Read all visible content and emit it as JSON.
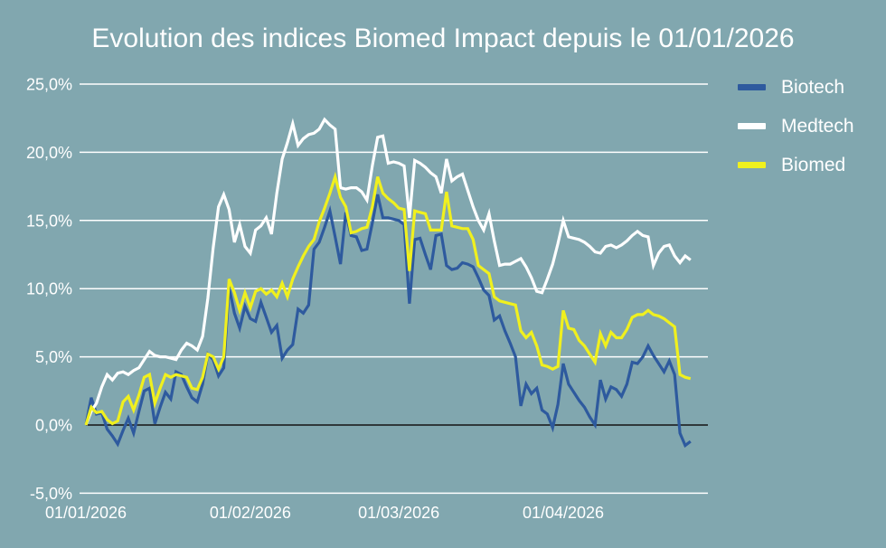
{
  "title": "Evolution des indices Biomed Impact depuis le 01/01/2026",
  "colors": {
    "background": "#81A7AF",
    "text": "#FFFFFF",
    "gridline": "#FFFFFF",
    "zero_line": "#141414"
  },
  "legend": {
    "position": "right",
    "items": [
      {
        "label": "Biotech"
      },
      {
        "label": "Medtech"
      },
      {
        "label": "Biomed"
      }
    ]
  },
  "chart_data": {
    "type": "line",
    "title": "Evolution des indices Biomed Impact depuis le 01/01/2026",
    "x_unit": "day",
    "x_start_date": "01/01/2026",
    "x_axis_end_day": 117,
    "grid": "horizontal",
    "ylim": [
      -5,
      25
    ],
    "y_tick_format": "percent-fr",
    "y_ticks": [
      {
        "value": 25,
        "label": "25,0%"
      },
      {
        "value": 20,
        "label": "20,0%"
      },
      {
        "value": 15,
        "label": "15,0%"
      },
      {
        "value": 10,
        "label": "10,0%"
      },
      {
        "value": 5,
        "label": "5,0%"
      },
      {
        "value": 0,
        "label": "0,0%"
      },
      {
        "value": -5,
        "label": "-5,0%"
      }
    ],
    "x_ticks": [
      {
        "day": 0,
        "label": "01/01/2026"
      },
      {
        "day": 31,
        "label": "01/02/2026"
      },
      {
        "day": 59,
        "label": "01/03/2026"
      },
      {
        "day": 90,
        "label": "01/04/2026"
      }
    ],
    "series": [
      {
        "name": "Biotech",
        "color": "#2E5A9E",
        "values": [
          0.0,
          2.0,
          0.8,
          0.9,
          -0.3,
          -0.8,
          -1.4,
          -0.4,
          0.5,
          -0.6,
          1.0,
          2.5,
          2.7,
          0.1,
          1.3,
          2.4,
          1.9,
          3.9,
          3.7,
          2.8,
          2.0,
          1.7,
          3.0,
          5.2,
          4.8,
          3.6,
          4.2,
          10.1,
          8.2,
          7.1,
          8.7,
          7.8,
          7.6,
          9.0,
          7.9,
          6.8,
          7.3,
          4.9,
          5.5,
          5.9,
          8.5,
          8.2,
          8.8,
          12.9,
          13.4,
          14.5,
          15.7,
          13.8,
          11.8,
          15.6,
          13.9,
          13.8,
          12.8,
          12.9,
          14.8,
          16.9,
          15.2,
          15.2,
          15.1,
          15.0,
          14.7,
          8.9,
          13.6,
          13.7,
          12.5,
          11.4,
          13.9,
          14.0,
          11.7,
          11.4,
          11.5,
          11.9,
          11.8,
          11.6,
          10.8,
          9.9,
          9.5,
          7.7,
          8.0,
          6.9,
          6.0,
          5.0,
          1.4,
          3.0,
          2.3,
          2.7,
          1.1,
          0.8,
          -0.2,
          1.5,
          4.5,
          3.0,
          2.4,
          1.8,
          1.3,
          0.6,
          0.0,
          3.3,
          1.9,
          2.8,
          2.6,
          2.1,
          3.0,
          4.6,
          4.5,
          5.0,
          5.8,
          5.1,
          4.5,
          3.9,
          4.7,
          3.7,
          -0.6,
          -1.5,
          -1.2
        ]
      },
      {
        "name": "Medtech",
        "color": "#FFFFFF",
        "values": [
          0.0,
          1.0,
          1.6,
          2.8,
          3.7,
          3.3,
          3.8,
          3.9,
          3.7,
          4.0,
          4.2,
          4.8,
          5.4,
          5.1,
          5.0,
          5.0,
          4.9,
          4.8,
          5.5,
          6.0,
          5.8,
          5.5,
          6.5,
          9.3,
          13.0,
          16.0,
          16.9,
          15.8,
          13.4,
          14.7,
          13.1,
          12.6,
          14.3,
          14.6,
          15.2,
          14.0,
          17.0,
          19.5,
          20.7,
          22.1,
          20.5,
          21.0,
          21.3,
          21.4,
          21.7,
          22.4,
          22.0,
          21.7,
          17.4,
          17.3,
          17.4,
          17.4,
          17.1,
          16.5,
          19.0,
          21.1,
          21.2,
          19.2,
          19.3,
          19.2,
          19.0,
          15.2,
          19.4,
          19.2,
          18.9,
          18.5,
          18.2,
          17.0,
          19.5,
          17.9,
          18.2,
          18.4,
          17.2,
          16.0,
          15.0,
          14.3,
          15.5,
          13.5,
          11.7,
          11.8,
          11.8,
          12.0,
          12.2,
          11.6,
          10.8,
          9.8,
          9.7,
          10.7,
          11.8,
          13.3,
          15.0,
          13.8,
          13.7,
          13.6,
          13.4,
          13.1,
          12.7,
          12.6,
          13.1,
          13.2,
          13.0,
          13.2,
          13.5,
          13.9,
          14.2,
          13.9,
          13.8,
          11.7,
          12.6,
          13.1,
          13.2,
          12.4,
          11.9,
          12.4,
          12.1
        ]
      },
      {
        "name": "Biomed",
        "color": "#F0F01E",
        "values": [
          0.0,
          1.3,
          0.9,
          1.0,
          0.4,
          0.1,
          0.3,
          1.7,
          2.1,
          1.1,
          2.2,
          3.5,
          3.7,
          1.6,
          2.7,
          3.7,
          3.5,
          3.7,
          3.6,
          3.5,
          2.7,
          2.6,
          3.5,
          5.2,
          5.0,
          4.1,
          5.0,
          10.7,
          9.7,
          8.4,
          9.7,
          8.6,
          9.8,
          10.0,
          9.6,
          9.9,
          9.4,
          10.4,
          9.4,
          10.7,
          11.6,
          12.4,
          13.1,
          13.6,
          14.9,
          15.9,
          17.0,
          18.2,
          16.7,
          16.0,
          14.1,
          14.2,
          14.4,
          14.5,
          16.0,
          18.2,
          17.0,
          16.6,
          16.3,
          15.9,
          15.8,
          11.3,
          15.7,
          15.6,
          15.5,
          14.3,
          14.3,
          14.3,
          17.1,
          14.6,
          14.5,
          14.4,
          14.4,
          13.6,
          11.7,
          11.4,
          11.1,
          9.4,
          9.1,
          9.0,
          8.9,
          8.8,
          6.9,
          6.4,
          6.8,
          5.8,
          4.4,
          4.3,
          4.1,
          4.3,
          8.4,
          7.1,
          7.0,
          6.2,
          5.8,
          5.2,
          4.6,
          6.7,
          5.8,
          6.8,
          6.4,
          6.4,
          7.0,
          7.9,
          8.1,
          8.1,
          8.4,
          8.1,
          8.0,
          7.8,
          7.5,
          7.2,
          3.7,
          3.5,
          3.4
        ]
      }
    ]
  }
}
